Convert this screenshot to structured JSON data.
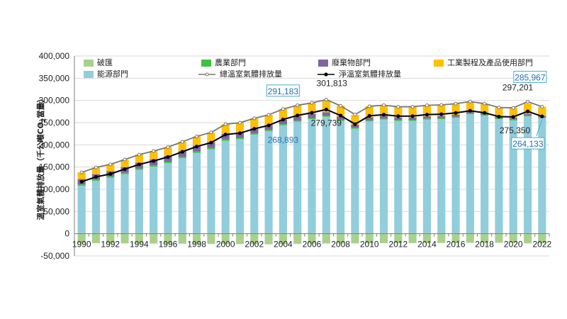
{
  "chart_data": {
    "type": "bar",
    "stacked": true,
    "ylabel_main": "溫室氣體排放量（千公噸CO",
    "ylabel_sub": "2",
    "ylabel_tail": "當量）",
    "ylim": [
      -50000,
      400000
    ],
    "yticks": [
      "-50,000",
      "0",
      "50,000",
      "100,000",
      "150,000",
      "200,000",
      "250,000",
      "300,000",
      "350,000",
      "400,000"
    ],
    "xtick_labels": [
      "1990",
      "1992",
      "1994",
      "1996",
      "1998",
      "2000",
      "2002",
      "2004",
      "2006",
      "2008",
      "2010",
      "2012",
      "2014",
      "2016",
      "2018",
      "2020",
      "2022"
    ],
    "categories": [
      1990,
      1991,
      1992,
      1993,
      1994,
      1995,
      1996,
      1997,
      1998,
      1999,
      2000,
      2001,
      2002,
      2003,
      2004,
      2005,
      2006,
      2007,
      2008,
      2009,
      2010,
      2011,
      2012,
      2013,
      2014,
      2015,
      2016,
      2017,
      2018,
      2019,
      2020,
      2021,
      2022
    ],
    "legend_position": "top",
    "series": [
      {
        "name": "破匯",
        "color": "#a9d18e",
        "values": [
          -21000,
          -21200,
          -21500,
          -21700,
          -22000,
          -22200,
          -22400,
          -22600,
          -22800,
          -23000,
          -23200,
          -23400,
          -23600,
          -23800,
          -23500,
          -22800,
          -22200,
          -22074,
          -21900,
          -21700,
          -21500,
          -21300,
          -21200,
          -21100,
          -21000,
          -20900,
          -20800,
          -20700,
          -20600,
          -20500,
          -20400,
          -21851,
          -21834
        ]
      },
      {
        "name": "能源部門",
        "color": "#92cddc",
        "values": [
          108000,
          119000,
          126000,
          134000,
          144000,
          151000,
          159000,
          170000,
          182000,
          190000,
          209000,
          213000,
          223000,
          231000,
          244000,
          252000,
          258000,
          263000,
          254000,
          236000,
          253000,
          257000,
          254000,
          254000,
          257000,
          258000,
          261000,
          269000,
          266000,
          258000,
          255000,
          264000,
          260000
        ]
      },
      {
        "name": "農業部門",
        "color": "#3ec33e",
        "values": [
          3000,
          3000,
          3000,
          3000,
          3000,
          3000,
          3000,
          3000,
          3000,
          3000,
          3000,
          2800,
          2700,
          2600,
          2600,
          2500,
          2500,
          2500,
          2400,
          2300,
          2300,
          2300,
          2300,
          2300,
          2300,
          2300,
          2300,
          2300,
          2300,
          2300,
          2300,
          2300,
          2300
        ]
      },
      {
        "name": "廢棄物部門",
        "color": "#8064a2",
        "values": [
          12000,
          12000,
          12000,
          12500,
          13000,
          13000,
          13000,
          13000,
          13000,
          13000,
          12500,
          12000,
          11500,
          11000,
          10000,
          9500,
          9000,
          8000,
          7500,
          7000,
          6500,
          6000,
          5500,
          5000,
          4800,
          4600,
          4400,
          4200,
          4000,
          3800,
          3600,
          3500,
          3400
        ]
      },
      {
        "name": "工業製程及產品使用部門",
        "color": "#ffc000",
        "values": [
          15000,
          15000,
          15500,
          17000,
          18000,
          19000,
          20000,
          21000,
          21000,
          22000,
          22000,
          22000,
          22500,
          23000,
          24000,
          25000,
          25000,
          28000,
          24000,
          22000,
          25000,
          24000,
          24000,
          24500,
          25000,
          25000,
          25000,
          22000,
          20500,
          20000,
          22500,
          23000,
          20000
        ]
      }
    ],
    "lines": [
      {
        "name": "總溫室氣體排放量",
        "color": "#777777",
        "values": [
          138000,
          149000,
          156000,
          167000,
          178000,
          186000,
          195000,
          207000,
          219000,
          228000,
          246500,
          249800,
          259700,
          267600,
          280600,
          289000,
          294500,
          301813,
          287900,
          268300,
          286800,
          289300,
          285800,
          285800,
          289100,
          289900,
          292700,
          297500,
          292800,
          284100,
          283400,
          297201,
          285967
        ]
      },
      {
        "name": "淨溫室氣體排放量",
        "color": "#000000",
        "values": [
          117000,
          127800,
          134500,
          145300,
          156000,
          163800,
          172600,
          184400,
          196200,
          205000,
          223300,
          226400,
          236100,
          243800,
          257100,
          266200,
          272300,
          279739,
          266000,
          246600,
          265300,
          268000,
          264600,
          264700,
          268100,
          269000,
          271900,
          276800,
          272200,
          263600,
          263000,
          275350,
          264133
        ]
      }
    ],
    "annotations": [
      {
        "text": "291,183",
        "boxed": true,
        "color": "#1f6fb2"
      },
      {
        "text": "268,893",
        "boxed": false,
        "color": "#1f6fb2"
      },
      {
        "text": "301,813",
        "boxed": false,
        "color": "#222222"
      },
      {
        "text": "279,739",
        "boxed": false,
        "color": "#222222"
      },
      {
        "text": "285,967",
        "boxed": true,
        "color": "#1f6fb2"
      },
      {
        "text": "297,201",
        "boxed": false,
        "color": "#222222"
      },
      {
        "text": "275,350",
        "boxed": false,
        "color": "#222222"
      },
      {
        "text": "264,133",
        "boxed": true,
        "color": "#1f6fb2"
      }
    ]
  }
}
